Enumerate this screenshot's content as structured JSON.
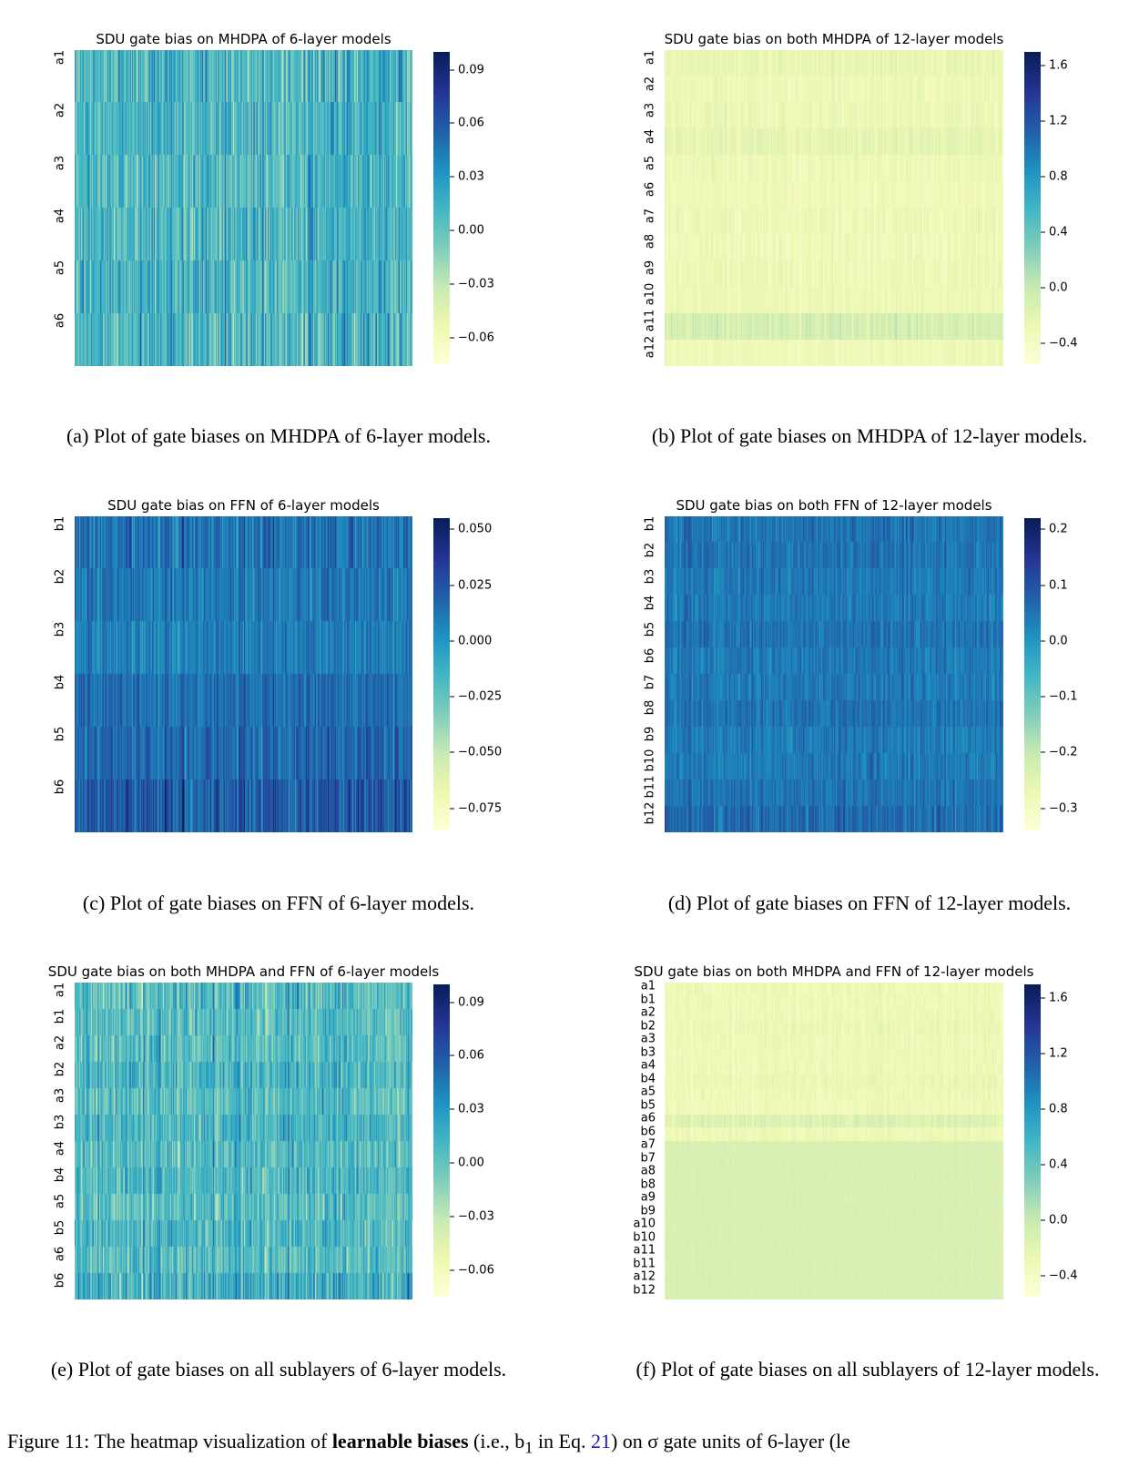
{
  "colormap": [
    "#ffffd9",
    "#edf8b1",
    "#c7e9b4",
    "#7fcdbb",
    "#41b6c4",
    "#1d91c0",
    "#225ea8",
    "#253494",
    "#081d58"
  ],
  "chart_data": [
    {
      "id": "a",
      "type": "heatmap",
      "title": "SDU gate bias on MHDPA of 6-layer models",
      "caption": "(a) Plot of gate biases on MHDPA of 6-layer models.",
      "rows": [
        "a1",
        "a2",
        "a3",
        "a4",
        "a5",
        "a6"
      ],
      "row_means": [
        0.012,
        0.01,
        0.008,
        0.01,
        0.011,
        0.009
      ],
      "row_spread": [
        0.025,
        0.022,
        0.022,
        0.022,
        0.024,
        0.025
      ],
      "columns": 512,
      "vmin": -0.075,
      "vmax": 0.1,
      "colorbar_ticks": [
        0.09,
        0.06,
        0.03,
        0.0,
        -0.03,
        -0.06
      ],
      "colorbar_labels": [
        "0.09",
        "0.06",
        "0.03",
        "0.00",
        "−0.03",
        "−0.06"
      ]
    },
    {
      "id": "b",
      "type": "heatmap",
      "title": "SDU gate bias on both MHDPA of 12-layer models",
      "caption": "(b) Plot of gate biases on MHDPA of 12-layer models.",
      "rows": [
        "a1",
        "a2",
        "a3",
        "a4",
        "a5",
        "a6",
        "a7",
        "a8",
        "a9",
        "a10",
        "a11",
        "a12"
      ],
      "row_means": [
        -0.25,
        -0.3,
        -0.28,
        -0.22,
        -0.3,
        -0.32,
        -0.3,
        -0.32,
        -0.3,
        -0.3,
        -0.1,
        -0.32
      ],
      "row_spread": [
        0.08,
        0.08,
        0.08,
        0.08,
        0.08,
        0.06,
        0.08,
        0.08,
        0.08,
        0.06,
        0.1,
        0.06
      ],
      "columns": 512,
      "vmin": -0.55,
      "vmax": 1.7,
      "colorbar_ticks": [
        1.6,
        1.2,
        0.8,
        0.4,
        0.0,
        -0.4
      ],
      "colorbar_labels": [
        "1.6",
        "1.2",
        "0.8",
        "0.4",
        "0.0",
        "−0.4"
      ]
    },
    {
      "id": "c",
      "type": "heatmap",
      "title": "SDU gate bias on FFN of 6-layer models",
      "caption": "(c) Plot of gate biases on FFN of 6-layer models.",
      "rows": [
        "b1",
        "b2",
        "b3",
        "b4",
        "b5",
        "b6"
      ],
      "row_means": [
        0.012,
        0.01,
        0.008,
        0.014,
        0.016,
        0.022
      ],
      "row_spread": [
        0.014,
        0.01,
        0.01,
        0.01,
        0.012,
        0.016
      ],
      "columns": 512,
      "vmin": -0.085,
      "vmax": 0.055,
      "colorbar_ticks": [
        0.05,
        0.025,
        0.0,
        -0.025,
        -0.05,
        -0.075
      ],
      "colorbar_labels": [
        "0.050",
        "0.025",
        "0.000",
        "−0.025",
        "−0.050",
        "−0.075"
      ]
    },
    {
      "id": "d",
      "type": "heatmap",
      "title": "SDU gate bias on both FFN of 12-layer models",
      "caption": "(d) Plot of gate biases on FFN of 12-layer models.",
      "rows": [
        "b1",
        "b2",
        "b3",
        "b4",
        "b5",
        "b6",
        "b7",
        "b8",
        "b9",
        "b10",
        "b11",
        "b12"
      ],
      "row_means": [
        0.05,
        0.05,
        0.04,
        0.04,
        0.05,
        0.04,
        0.04,
        0.05,
        0.04,
        0.04,
        0.05,
        0.06
      ],
      "row_spread": [
        0.035,
        0.03,
        0.03,
        0.03,
        0.03,
        0.03,
        0.03,
        0.03,
        0.03,
        0.03,
        0.03,
        0.04
      ],
      "columns": 512,
      "vmin": -0.34,
      "vmax": 0.22,
      "colorbar_ticks": [
        0.2,
        0.1,
        0.0,
        -0.1,
        -0.2,
        -0.3
      ],
      "colorbar_labels": [
        "0.2",
        "0.1",
        "0.0",
        "−0.1",
        "−0.2",
        "−0.3"
      ]
    },
    {
      "id": "e",
      "type": "heatmap",
      "title": "SDU gate bias on both MHDPA and FFN of 6-layer models",
      "caption": "(e) Plot of gate biases on all sublayers of 6-layer models.",
      "rows": [
        "a1",
        "b1",
        "a2",
        "b2",
        "a3",
        "b3",
        "a4",
        "b4",
        "a5",
        "b5",
        "a6",
        "b6"
      ],
      "row_means": [
        0.005,
        0.006,
        0.004,
        0.01,
        0.003,
        0.01,
        0.004,
        0.008,
        0.003,
        0.008,
        0.004,
        0.014
      ],
      "row_spread": [
        0.022,
        0.02,
        0.02,
        0.02,
        0.02,
        0.02,
        0.02,
        0.02,
        0.02,
        0.02,
        0.02,
        0.024
      ],
      "columns": 512,
      "vmin": -0.075,
      "vmax": 0.1,
      "colorbar_ticks": [
        0.09,
        0.06,
        0.03,
        0.0,
        -0.03,
        -0.06
      ],
      "colorbar_labels": [
        "0.09",
        "0.06",
        "0.03",
        "0.00",
        "−0.03",
        "−0.06"
      ]
    },
    {
      "id": "f",
      "type": "heatmap",
      "title": "SDU gate bias on both MHDPA and FFN of 12-layer models",
      "caption": "(f) Plot of gate biases on all sublayers of 12-layer models.",
      "rows": [
        "a1",
        "b1",
        "a2",
        "b2",
        "a3",
        "b3",
        "a4",
        "b4",
        "a5",
        "b5",
        "a6",
        "b6",
        "a7",
        "b7",
        "a8",
        "b8",
        "a9",
        "b9",
        "a10",
        "b10",
        "a11",
        "b11",
        "a12",
        "b12"
      ],
      "row_means": [
        -0.3,
        -0.3,
        -0.3,
        -0.28,
        -0.3,
        -0.3,
        -0.3,
        -0.28,
        -0.3,
        -0.32,
        -0.15,
        -0.3,
        -0.12,
        -0.12,
        -0.12,
        -0.12,
        -0.12,
        -0.12,
        -0.12,
        -0.12,
        -0.12,
        -0.12,
        -0.12,
        -0.12
      ],
      "row_spread": [
        0.07,
        0.07,
        0.07,
        0.07,
        0.07,
        0.06,
        0.07,
        0.07,
        0.07,
        0.06,
        0.08,
        0.06,
        0.02,
        0.02,
        0.02,
        0.02,
        0.02,
        0.02,
        0.02,
        0.02,
        0.02,
        0.02,
        0.02,
        0.02
      ],
      "columns": 512,
      "vmin": -0.55,
      "vmax": 1.7,
      "colorbar_ticks": [
        1.6,
        1.2,
        0.8,
        0.4,
        0.0,
        -0.4
      ],
      "colorbar_labels": [
        "1.6",
        "1.2",
        "0.8",
        "0.4",
        "0.0",
        "−0.4"
      ]
    }
  ],
  "figure_caption": {
    "prefix": "Figure 11:  The heatmap visualization of ",
    "bold": "learnable biases",
    "mid": " (i.e., b",
    "sub": "1",
    "mid2": " in Eq. ",
    "ref": "21",
    "suffix": ") on σ gate units of 6-layer (le"
  }
}
